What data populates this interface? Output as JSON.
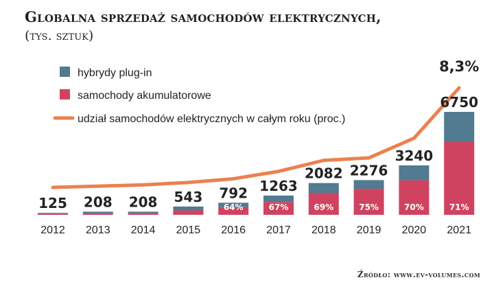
{
  "title": "Globalna sprzedaż samochodów elektrycznych,",
  "subtitle": "(tys. sztuk)",
  "source": "Źródło: www.ev-volumes.com",
  "colors": {
    "phev": "#527a90",
    "bev": "#d04360",
    "share_line": "#ec8050"
  },
  "chart_data": {
    "type": "bar",
    "stacked": true,
    "categories": [
      "2012",
      "2013",
      "2014",
      "2015",
      "2016",
      "2017",
      "2018",
      "2019",
      "2020",
      "2021"
    ],
    "totals": [
      125,
      208,
      208,
      543,
      792,
      1263,
      2082,
      2276,
      3240,
      6750
    ],
    "total_labels": [
      "125",
      "208",
      "208",
      "543",
      "792",
      "1263",
      "2082",
      "2276",
      "3240",
      "6750"
    ],
    "bev_share_labels": [
      "",
      "",
      "",
      "",
      "64%",
      "67%",
      "69%",
      "75%",
      "70%",
      "71%"
    ],
    "series": [
      {
        "name": "hybrydy plug-in",
        "values": [
          63,
          104,
          104,
          250,
          285,
          417,
          645,
          569,
          972,
          1958
        ]
      },
      {
        "name": "samochody akumulatorowe",
        "values": [
          62,
          104,
          104,
          293,
          507,
          846,
          1437,
          1707,
          2268,
          4792
        ]
      }
    ],
    "line_series": {
      "name": "udział samochodów elektrycznych w całym roku (proc.)",
      "values": [
        0.2,
        0.3,
        0.4,
        0.6,
        0.9,
        1.5,
        2.4,
        2.6,
        4.2,
        8.3
      ],
      "end_label": "8,3%"
    }
  }
}
